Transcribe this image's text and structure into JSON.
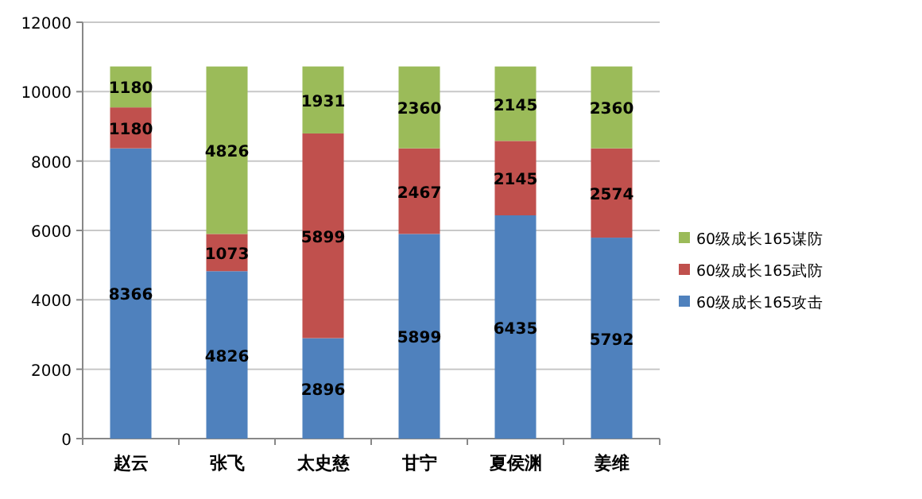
{
  "chart_data": {
    "type": "bar",
    "stacked": true,
    "categories": [
      "赵云",
      "张飞",
      "太史慈",
      "甘宁",
      "夏侯渊",
      "姜维"
    ],
    "series": [
      {
        "name": "60级成长165攻击",
        "color": "#4f81bd",
        "values": [
          8366,
          4826,
          2896,
          5899,
          6435,
          5792
        ]
      },
      {
        "name": "60级成长165武防",
        "color": "#c0504d",
        "values": [
          1180,
          1073,
          5899,
          2467,
          2145,
          2574
        ]
      },
      {
        "name": "60级成长165谋防",
        "color": "#9bbb59",
        "values": [
          1180,
          4826,
          1931,
          2360,
          2145,
          2360
        ]
      }
    ],
    "ylim": [
      0,
      12000
    ],
    "yticks": [
      0,
      2000,
      4000,
      6000,
      8000,
      10000,
      12000
    ],
    "grid": "y",
    "legend": "right",
    "data_labels": true
  }
}
